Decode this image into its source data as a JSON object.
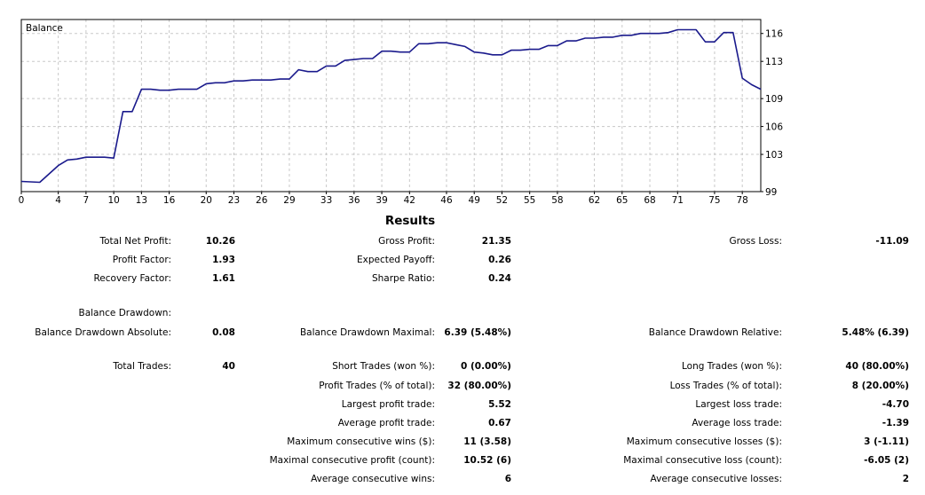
{
  "chart_data": {
    "type": "line",
    "title": "Balance",
    "xlabel": "",
    "ylabel": "",
    "xlim": [
      0,
      80
    ],
    "ylim": [
      99,
      117.5
    ],
    "grid": true,
    "x_ticks": [
      0,
      4,
      7,
      10,
      13,
      16,
      20,
      23,
      26,
      29,
      33,
      36,
      39,
      42,
      46,
      49,
      52,
      55,
      58,
      62,
      65,
      68,
      71,
      75,
      78
    ],
    "y_ticks": [
      99,
      103,
      106,
      109,
      113,
      116
    ],
    "series": [
      {
        "x": [
          0,
          2,
          4,
          5,
          6,
          7,
          8,
          9,
          10,
          11,
          12,
          13,
          14,
          15,
          16,
          17,
          18,
          19,
          20,
          21,
          22,
          23,
          24,
          25,
          26,
          27,
          28,
          29,
          30,
          31,
          32,
          33,
          34,
          35,
          36,
          37,
          38,
          39,
          40,
          41,
          42,
          43,
          44,
          45,
          46,
          47,
          48,
          49,
          50,
          51,
          52,
          53,
          54,
          55,
          56,
          57,
          58,
          59,
          60,
          61,
          62,
          63,
          64,
          65,
          66,
          67,
          68,
          69,
          70,
          71,
          72,
          73,
          74,
          75,
          76,
          77,
          78,
          79,
          80
        ],
        "values": [
          100.1,
          100.0,
          101.8,
          102.4,
          102.5,
          102.7,
          102.7,
          102.7,
          102.6,
          107.6,
          107.6,
          110.0,
          110.0,
          109.9,
          109.9,
          110.0,
          110.0,
          110.0,
          110.6,
          110.7,
          110.7,
          110.9,
          110.9,
          111.0,
          111.0,
          111.0,
          111.1,
          111.1,
          112.1,
          111.9,
          111.9,
          112.5,
          112.5,
          113.1,
          113.2,
          113.3,
          113.3,
          114.1,
          114.1,
          114.0,
          114.0,
          114.9,
          114.9,
          115.0,
          115.0,
          114.8,
          114.6,
          114.0,
          113.9,
          113.7,
          113.7,
          114.2,
          114.2,
          114.3,
          114.3,
          114.7,
          114.7,
          115.2,
          115.2,
          115.5,
          115.5,
          115.6,
          115.6,
          115.8,
          115.8,
          116.0,
          116.0,
          116.0,
          116.1,
          116.4,
          116.4,
          116.4,
          115.1,
          115.1,
          116.1,
          116.1,
          111.2,
          110.5,
          110.0
        ]
      }
    ]
  },
  "results": {
    "title": "Results",
    "rows": [
      {
        "y": 272,
        "cells": [
          {
            "l": "Total Net Profit:",
            "v": "10.26"
          },
          {
            "l": "Gross Profit:",
            "v": "21.35"
          },
          {
            "l": "Gross Loss:",
            "v": "-11.09"
          }
        ]
      },
      {
        "y": 293,
        "cells": [
          {
            "l": "Profit Factor:",
            "v": "1.93"
          },
          {
            "l": "Expected Payoff:",
            "v": "0.26"
          },
          null
        ]
      },
      {
        "y": 314,
        "cells": [
          {
            "l": "Recovery Factor:",
            "v": "1.61"
          },
          {
            "l": "Sharpe Ratio:",
            "v": "0.24"
          },
          null
        ]
      },
      {
        "y": 353,
        "cells": [
          {
            "l": "Balance Drawdown:",
            "v": ""
          },
          null,
          null
        ]
      },
      {
        "y": 375,
        "cells": [
          {
            "l": "Balance Drawdown Absolute:",
            "v": "0.08"
          },
          {
            "l": "Balance Drawdown Maximal:",
            "v": "6.39 (5.48%)"
          },
          {
            "l": "Balance Drawdown Relative:",
            "v": "5.48% (6.39)"
          }
        ]
      },
      {
        "y": 413,
        "cells": [
          {
            "l": "Total Trades:",
            "v": "40"
          },
          {
            "l": "Short Trades (won %):",
            "v": "0 (0.00%)"
          },
          {
            "l": "Long Trades (won %):",
            "v": "40 (80.00%)"
          }
        ]
      },
      {
        "y": 435,
        "cells": [
          null,
          {
            "l": "Profit Trades (% of total):",
            "v": "32 (80.00%)"
          },
          {
            "l": "Loss Trades (% of total):",
            "v": "8 (20.00%)"
          }
        ]
      },
      {
        "y": 456,
        "cells": [
          null,
          {
            "l": "Largest profit trade:",
            "v": "5.52"
          },
          {
            "l": "Largest loss trade:",
            "v": "-4.70"
          }
        ]
      },
      {
        "y": 477,
        "cells": [
          null,
          {
            "l": "Average profit trade:",
            "v": "0.67"
          },
          {
            "l": "Average loss trade:",
            "v": "-1.39"
          }
        ]
      },
      {
        "y": 498,
        "cells": [
          null,
          {
            "l": "Maximum consecutive wins ($):",
            "v": "11 (3.58)"
          },
          {
            "l": "Maximum consecutive losses ($):",
            "v": "3 (-1.11)"
          }
        ]
      },
      {
        "y": 519,
        "cells": [
          null,
          {
            "l": "Maximal consecutive profit (count):",
            "v": "10.52 (6)"
          },
          {
            "l": "Maximal consecutive loss (count):",
            "v": "-6.05 (2)"
          }
        ]
      },
      {
        "y": 540,
        "cells": [
          null,
          {
            "l": "Average consecutive wins:",
            "v": "6"
          },
          {
            "l": "Average consecutive losses:",
            "v": "2"
          }
        ]
      }
    ]
  },
  "colors": {
    "line": "#1a1a8c",
    "grid": "#c8c8c8",
    "frame": "#000000"
  }
}
